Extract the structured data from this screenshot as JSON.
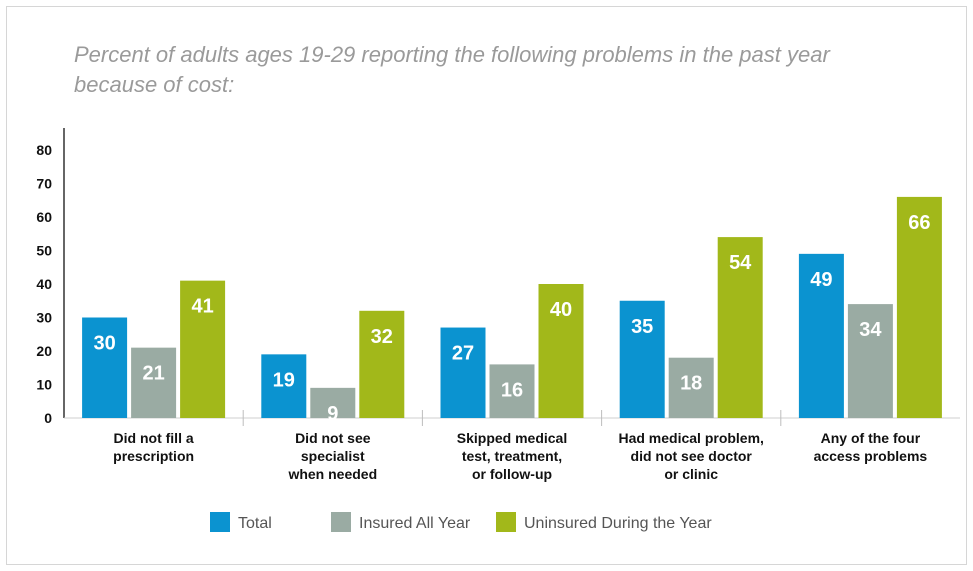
{
  "title": "Percent of adults ages 19-29 reporting the following problems in the past year because of cost:",
  "chart_data": {
    "type": "bar",
    "title": "Percent of adults ages 19-29 reporting the following problems in the past year because of cost:",
    "categories": [
      [
        "Did not fill a",
        "prescription"
      ],
      [
        "Did not see",
        "specialist",
        "when needed"
      ],
      [
        "Skipped medical",
        "test, treatment,",
        "or follow-up"
      ],
      [
        "Had medical problem,",
        "did not see doctor",
        "or clinic"
      ],
      [
        "Any of the four",
        "access problems"
      ]
    ],
    "series": [
      {
        "name": "Total",
        "color": "#0b93d0",
        "values": [
          30,
          19,
          27,
          35,
          49
        ]
      },
      {
        "name": "Insured All Year",
        "color": "#9aaba3",
        "values": [
          21,
          9,
          16,
          18,
          34
        ]
      },
      {
        "name": "Uninsured During the Year",
        "color": "#a2b81a",
        "values": [
          41,
          32,
          40,
          54,
          66
        ]
      }
    ],
    "ylim": [
      0,
      80
    ],
    "yticks": [
      0,
      10,
      20,
      30,
      40,
      50,
      60,
      70,
      80
    ],
    "legend_position": "bottom",
    "grid": false
  }
}
